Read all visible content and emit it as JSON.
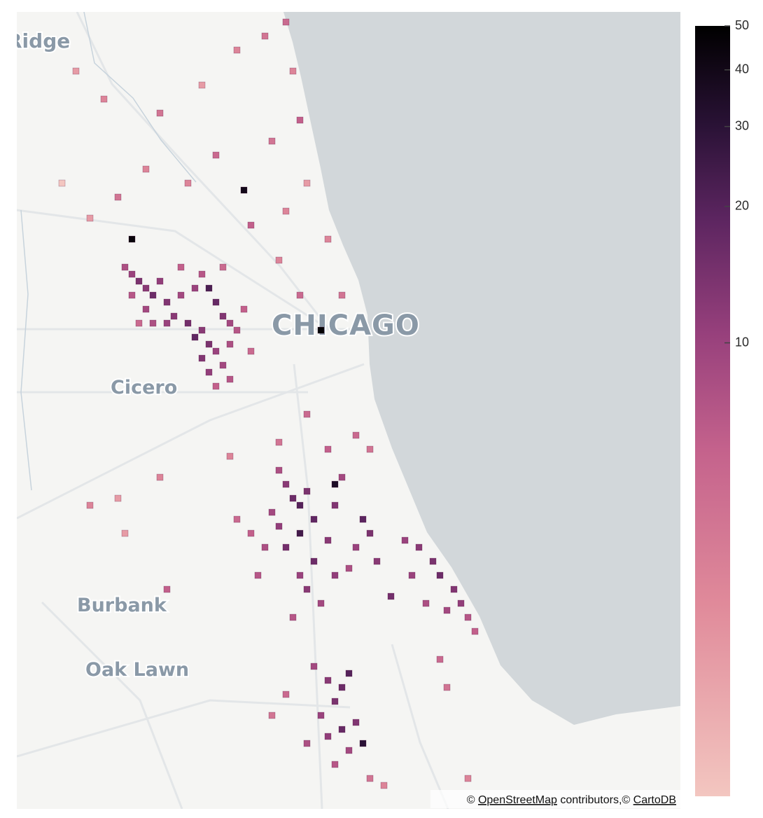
{
  "chart_data": {
    "type": "heatmap",
    "places": [
      "Ridge",
      "CHICAGO",
      "Cicero",
      "Burbank",
      "Oak Lawn"
    ],
    "attribution": {
      "prefix": "©",
      "osm": "OpenStreetMap",
      "middle": "contributors,©",
      "carto": "CartoDB"
    },
    "clim": [
      1,
      50
    ],
    "log_color": true,
    "cticks": [
      10,
      20,
      30,
      40,
      50
    ],
    "colorscale": [
      [
        0,
        "#f3c6c0"
      ],
      [
        0.25,
        "#e08a9a"
      ],
      [
        0.45,
        "#c4628c"
      ],
      [
        0.6,
        "#97407c"
      ],
      [
        0.75,
        "#5c2560"
      ],
      [
        0.87,
        "#2a1236"
      ],
      [
        1,
        "#000000"
      ]
    ],
    "lon": [
      -87.7975,
      -87.794,
      -87.7905,
      -87.787,
      -87.7835,
      -87.78,
      -87.7765,
      -87.787,
      -87.794,
      -87.773,
      -87.7695,
      -87.766,
      -87.7625,
      -87.759,
      -87.7555,
      -87.752,
      -87.759,
      -87.7555,
      -87.7485,
      -87.745,
      -87.7625,
      -87.759,
      -87.7555,
      -87.752,
      -87.7485,
      -87.745,
      -87.7415,
      -87.7835,
      -87.7765,
      -87.752,
      -87.745,
      -87.7905,
      -87.7695,
      -87.7485,
      -87.738,
      -87.7345,
      -87.794,
      -87.6995,
      -87.738,
      -87.822,
      -87.808,
      -87.78,
      -87.759,
      -87.7415,
      -87.7275,
      -87.717,
      -87.7135,
      -87.71,
      -87.724,
      -87.752,
      -87.766,
      -87.801,
      -87.815,
      -87.7345,
      -87.717,
      -87.7065,
      -87.696,
      -87.689,
      -87.71,
      -87.7205,
      -87.787,
      -87.829,
      -87.7205,
      -87.717,
      -87.7135,
      -87.71,
      -87.7065,
      -87.703,
      -87.71,
      -87.717,
      -87.7205,
      -87.724,
      -87.6925,
      -87.689,
      -87.6925,
      -87.696,
      -87.703,
      -87.71,
      -87.7065,
      -87.6995,
      -87.7135,
      -87.6925,
      -87.6855,
      -87.6785,
      -87.675,
      -87.682,
      -87.6715,
      -87.6645,
      -87.7275,
      -87.7345,
      -87.7415,
      -87.731,
      -87.696,
      -87.682,
      -87.675,
      -87.7065,
      -87.7205,
      -87.745,
      -87.78,
      -87.801,
      -87.815,
      -87.7975,
      -87.6575,
      -87.6505,
      -87.6435,
      -87.64,
      -87.633,
      -87.6295,
      -87.6365,
      -87.647,
      -87.654,
      -87.626,
      -87.6225,
      -87.64,
      -87.6365,
      -87.703,
      -87.696,
      -87.689,
      -87.6855,
      -87.6925,
      -87.6995,
      -87.689,
      -87.696,
      -87.682,
      -87.7065,
      -87.6785,
      -87.6855,
      -87.6925,
      -87.717,
      -87.724,
      -87.675,
      -87.668,
      -87.626,
      -87.7765
    ],
    "lat": [
      41.9076,
      41.9042,
      41.9008,
      41.8974,
      41.894,
      41.9008,
      41.8906,
      41.8872,
      41.894,
      41.8838,
      41.894,
      41.8804,
      41.8736,
      41.877,
      41.8702,
      41.8668,
      41.8634,
      41.8566,
      41.86,
      41.8702,
      41.8974,
      41.9042,
      41.8974,
      41.8906,
      41.8838,
      41.8804,
      41.877,
      41.8804,
      41.8804,
      41.8498,
      41.8532,
      41.8804,
      41.9076,
      41.9076,
      41.8872,
      41.8668,
      41.9212,
      41.877,
      41.945,
      42.0028,
      41.9892,
      41.9824,
      41.996,
      42.013,
      42.0198,
      42.0266,
      42.0028,
      41.979,
      41.9688,
      41.962,
      41.9484,
      41.9416,
      41.9314,
      41.928,
      41.9348,
      41.9484,
      41.9212,
      41.894,
      41.894,
      41.911,
      41.9552,
      41.9484,
      41.809,
      41.8022,
      41.7954,
      41.792,
      41.7988,
      41.7852,
      41.7784,
      41.7716,
      41.7818,
      41.7886,
      41.792,
      41.8056,
      41.8022,
      41.775,
      41.7648,
      41.758,
      41.7512,
      41.7444,
      41.7376,
      41.758,
      41.7614,
      41.7852,
      41.7784,
      41.7716,
      41.7648,
      41.7478,
      41.7716,
      41.7784,
      41.7852,
      41.758,
      41.8192,
      41.826,
      41.8192,
      41.8362,
      41.8226,
      41.8158,
      41.8056,
      41.7954,
      41.792,
      41.7784,
      41.775,
      41.7716,
      41.7648,
      41.758,
      41.7512,
      41.7444,
      41.741,
      41.7444,
      41.758,
      41.7376,
      41.7308,
      41.7172,
      41.7036,
      41.7138,
      41.707,
      41.7036,
      41.7104,
      41.6968,
      41.69,
      41.6832,
      41.6798,
      41.6866,
      41.6764,
      41.6764,
      41.673,
      41.6662,
      41.7002,
      41.69,
      41.6594,
      41.656,
      41.6594,
      41.7512
    ],
    "counts": [
      8,
      10,
      14,
      12,
      16,
      11,
      13,
      9,
      7,
      12,
      9,
      15,
      18,
      12,
      14,
      10,
      13,
      11,
      9,
      8,
      10,
      7,
      22,
      17,
      13,
      9,
      7,
      8,
      10,
      6,
      7,
      5,
      6,
      5,
      6,
      5,
      45,
      48,
      40,
      2,
      3,
      4,
      2,
      3,
      4,
      5,
      3,
      6,
      4,
      5,
      3,
      4,
      2,
      6,
      3,
      2,
      3,
      4,
      5,
      3,
      3,
      1,
      8,
      12,
      16,
      20,
      14,
      18,
      24,
      15,
      11,
      9,
      13,
      9,
      35,
      12,
      16,
      10,
      12,
      9,
      7,
      11,
      8,
      19,
      14,
      10,
      12,
      15,
      8,
      6,
      5,
      7,
      6,
      5,
      4,
      5,
      4,
      3,
      3,
      2,
      3,
      2,
      10,
      12,
      14,
      16,
      13,
      11,
      9,
      8,
      10,
      7,
      6,
      5,
      4,
      9,
      12,
      16,
      20,
      14,
      10,
      17,
      11,
      13,
      8,
      30,
      9,
      7,
      5,
      4,
      4,
      3,
      3,
      6
    ]
  }
}
